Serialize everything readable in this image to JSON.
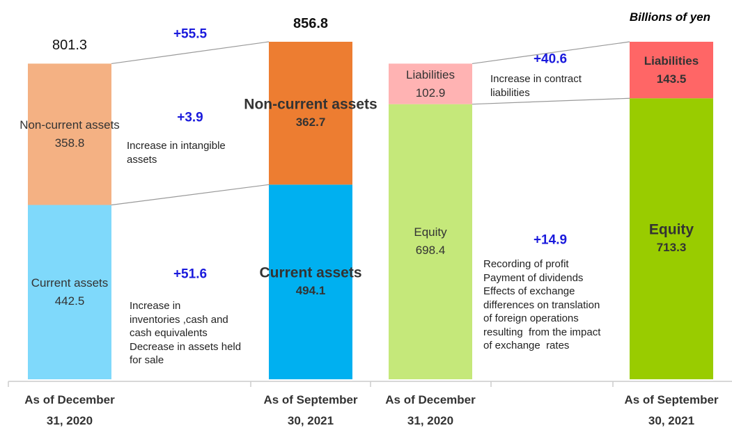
{
  "unit": "Billions of yen",
  "chart_data": [
    {
      "type": "bar",
      "stacked": true,
      "categories": [
        "As of December\n31, 2020",
        "As of September\n30, 2021"
      ],
      "totals": [
        801.3,
        856.8
      ],
      "total_change": 55.5,
      "total_change_label": "+55.5",
      "series": [
        {
          "name": "Current assets",
          "colors": [
            "#7fd9fb",
            "#00b0f0"
          ],
          "values": [
            442.5,
            494.1
          ],
          "change": 51.6,
          "change_label": "+51.6",
          "note": "Increase in\ninventories ,cash and\ncash equivalents\nDecrease in assets held\nfor sale"
        },
        {
          "name": "Non-current assets",
          "colors": [
            "#f4b183",
            "#ed7d31"
          ],
          "values": [
            358.8,
            362.7
          ],
          "change": 3.9,
          "change_label": "+3.9",
          "note": "Increase in intangible\nassets"
        }
      ]
    },
    {
      "type": "bar",
      "stacked": true,
      "categories": [
        "As of December\n31, 2020",
        "As of September\n30, 2021"
      ],
      "series": [
        {
          "name": "Equity",
          "colors": [
            "#c5e87a",
            "#99cc00"
          ],
          "values": [
            698.4,
            713.3
          ],
          "change": 14.9,
          "change_label": "+14.9",
          "note": "Recording of profit\nPayment of dividends\nEffects of exchange\ndifferences on translation\nof foreign operations\nresulting  from the impact\nof exchange  rates"
        },
        {
          "name": "Liabilities",
          "colors": [
            "#ffb3b3",
            "#ff6666"
          ],
          "values": [
            102.9,
            143.5
          ],
          "change": 40.6,
          "change_label": "+40.6",
          "note": "Increase in contract\nliabilities"
        }
      ]
    }
  ]
}
